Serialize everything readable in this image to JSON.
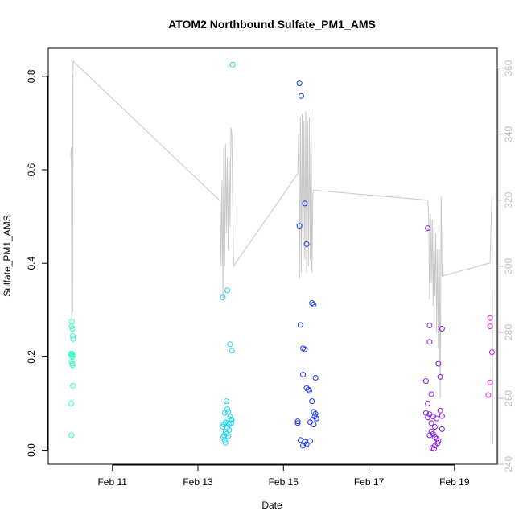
{
  "chart_data": {
    "type": "scatter",
    "title": "ATOM2 Northbound Sulfate_PM1_AMS",
    "xlabel": "Date",
    "ylabel": "Sulfate_PM1_AMS",
    "x_is_date": true,
    "xlim": [
      "2017-02-09T12:00",
      "2017-02-20T00:00"
    ],
    "x_ticks": [
      {
        "x": "2017-02-11T00:00",
        "label": "Feb 11"
      },
      {
        "x": "2017-02-13T00:00",
        "label": "Feb 13"
      },
      {
        "x": "2017-02-15T00:00",
        "label": "Feb 15"
      },
      {
        "x": "2017-02-17T00:00",
        "label": "Feb 17"
      },
      {
        "x": "2017-02-19T00:00",
        "label": "Feb 19"
      }
    ],
    "ylim": [
      -0.03,
      0.86
    ],
    "y_ticks": [
      0.0,
      0.2,
      0.4,
      0.6,
      0.8
    ],
    "y_tick_labels": [
      "0.0",
      "0.2",
      "0.4",
      "0.6",
      "0.8"
    ],
    "y2lim": [
      240,
      366
    ],
    "y2_ticks": [
      240,
      260,
      280,
      300,
      320,
      340,
      360
    ],
    "y2_color": "#bfbfbf",
    "grid": false,
    "colors": {
      "series1": "#2effc6",
      "series2": "#1ad6f0",
      "series3": "#1a36f5",
      "series4": "#8a1ae8",
      "series5": "#e01ae8",
      "line": "#c8c8c8"
    },
    "series": [
      {
        "color": "#2effc6",
        "points": [
          [
            "2017-02-10T01:00",
            0.265
          ],
          [
            "2017-02-10T01:15",
            0.275
          ],
          [
            "2017-02-10T01:30",
            0.26
          ],
          [
            "2017-02-10T01:45",
            0.245
          ],
          [
            "2017-02-10T02:00",
            0.238
          ],
          [
            "2017-02-10T00:45",
            0.205
          ],
          [
            "2017-02-10T01:00",
            0.207
          ],
          [
            "2017-02-10T01:15",
            0.202
          ],
          [
            "2017-02-10T01:30",
            0.205
          ],
          [
            "2017-02-10T01:45",
            0.2
          ],
          [
            "2017-02-10T01:05",
            0.19
          ],
          [
            "2017-02-10T01:20",
            0.185
          ],
          [
            "2017-02-10T01:35",
            0.182
          ],
          [
            "2017-02-10T01:50",
            0.138
          ],
          [
            "2017-02-10T00:50",
            0.1
          ],
          [
            "2017-02-10T01:00",
            0.032
          ]
        ]
      },
      {
        "color": "#1ad6f0",
        "points": [
          [
            "2017-02-13T14:00",
            0.327
          ],
          [
            "2017-02-13T16:30",
            0.342
          ],
          [
            "2017-02-13T18:00",
            0.227
          ],
          [
            "2017-02-13T19:00",
            0.213
          ],
          [
            "2017-02-13T19:30",
            0.825
          ],
          [
            "2017-02-13T16:00",
            0.105
          ],
          [
            "2017-02-13T16:30",
            0.088
          ],
          [
            "2017-02-13T15:00",
            0.08
          ],
          [
            "2017-02-13T17:00",
            0.082
          ],
          [
            "2017-02-13T18:00",
            0.072
          ],
          [
            "2017-02-13T18:30",
            0.066
          ],
          [
            "2017-02-13T19:00",
            0.065
          ],
          [
            "2017-02-13T15:30",
            0.06
          ],
          [
            "2017-02-13T14:30",
            0.055
          ],
          [
            "2017-02-13T16:00",
            0.058
          ],
          [
            "2017-02-13T17:30",
            0.055
          ],
          [
            "2017-02-13T18:45",
            0.058
          ],
          [
            "2017-02-13T14:00",
            0.05
          ],
          [
            "2017-02-13T16:30",
            0.048
          ],
          [
            "2017-02-13T17:30",
            0.043
          ],
          [
            "2017-02-13T15:30",
            0.038
          ],
          [
            "2017-02-13T16:00",
            0.035
          ],
          [
            "2017-02-13T14:45",
            0.032
          ],
          [
            "2017-02-13T14:15",
            0.028
          ],
          [
            "2017-02-13T17:00",
            0.03
          ],
          [
            "2017-02-13T15:00",
            0.022
          ],
          [
            "2017-02-13T15:30",
            0.016
          ]
        ]
      },
      {
        "color": "#1a36f5",
        "points": [
          [
            "2017-02-15T09:00",
            0.785
          ],
          [
            "2017-02-15T10:00",
            0.758
          ],
          [
            "2017-02-15T12:00",
            0.528
          ],
          [
            "2017-02-15T09:00",
            0.48
          ],
          [
            "2017-02-15T13:00",
            0.441
          ],
          [
            "2017-02-15T16:00",
            0.315
          ],
          [
            "2017-02-15T17:00",
            0.312
          ],
          [
            "2017-02-15T09:30",
            0.268
          ],
          [
            "2017-02-15T11:00",
            0.218
          ],
          [
            "2017-02-15T12:00",
            0.216
          ],
          [
            "2017-02-15T11:00",
            0.162
          ],
          [
            "2017-02-15T18:00",
            0.155
          ],
          [
            "2017-02-15T13:00",
            0.133
          ],
          [
            "2017-02-15T14:00",
            0.13
          ],
          [
            "2017-02-15T14:30",
            0.127
          ],
          [
            "2017-02-15T16:00",
            0.105
          ],
          [
            "2017-02-15T17:00",
            0.082
          ],
          [
            "2017-02-15T18:00",
            0.078
          ],
          [
            "2017-02-15T17:30",
            0.072
          ],
          [
            "2017-02-15T18:30",
            0.068
          ],
          [
            "2017-02-15T16:30",
            0.065
          ],
          [
            "2017-02-15T08:00",
            0.062
          ],
          [
            "2017-02-15T15:00",
            0.06
          ],
          [
            "2017-02-15T08:00",
            0.058
          ],
          [
            "2017-02-15T17:00",
            0.055
          ],
          [
            "2017-02-15T09:30",
            0.022
          ],
          [
            "2017-02-15T15:00",
            0.02
          ],
          [
            "2017-02-15T12:00",
            0.018
          ],
          [
            "2017-02-15T13:00",
            0.013
          ],
          [
            "2017-02-15T11:00",
            0.01
          ]
        ]
      },
      {
        "color": "#8a1ae8",
        "points": [
          [
            "2017-02-18T09:00",
            0.475
          ],
          [
            "2017-02-18T10:00",
            0.267
          ],
          [
            "2017-02-18T17:00",
            0.26
          ],
          [
            "2017-02-18T10:00",
            0.232
          ],
          [
            "2017-02-18T15:00",
            0.185
          ],
          [
            "2017-02-18T16:00",
            0.157
          ],
          [
            "2017-02-18T08:00",
            0.148
          ],
          [
            "2017-02-18T11:00",
            0.12
          ],
          [
            "2017-02-18T09:00",
            0.1
          ],
          [
            "2017-02-18T16:00",
            0.085
          ],
          [
            "2017-02-18T08:00",
            0.08
          ],
          [
            "2017-02-18T10:00",
            0.077
          ],
          [
            "2017-02-18T17:00",
            0.073
          ],
          [
            "2017-02-18T12:00",
            0.072
          ],
          [
            "2017-02-18T09:00",
            0.07
          ],
          [
            "2017-02-18T14:00",
            0.068
          ],
          [
            "2017-02-18T11:00",
            0.058
          ],
          [
            "2017-02-18T13:00",
            0.05
          ],
          [
            "2017-02-18T17:00",
            0.045
          ],
          [
            "2017-02-18T11:00",
            0.04
          ],
          [
            "2017-02-18T12:00",
            0.035
          ],
          [
            "2017-02-18T10:00",
            0.032
          ],
          [
            "2017-02-18T13:00",
            0.028
          ],
          [
            "2017-02-18T14:00",
            0.025
          ],
          [
            "2017-02-18T15:00",
            0.02
          ],
          [
            "2017-02-18T14:30",
            0.015
          ],
          [
            "2017-02-18T13:00",
            0.01
          ],
          [
            "2017-02-18T11:30",
            0.005
          ],
          [
            "2017-02-18T12:30",
            0.003
          ]
        ]
      },
      {
        "color": "#e01ae8",
        "points": [
          [
            "2017-02-19T20:00",
            0.283
          ],
          [
            "2017-02-19T20:00",
            0.265
          ],
          [
            "2017-02-19T21:00",
            0.21
          ],
          [
            "2017-02-19T20:00",
            0.145
          ],
          [
            "2017-02-19T19:00",
            0.118
          ]
        ]
      }
    ],
    "line_series": {
      "axis": "right",
      "color": "#c8c8c8",
      "points": [
        [
          "2017-02-10T00:40",
          333
        ],
        [
          "2017-02-10T00:55",
          336
        ],
        [
          "2017-02-10T01:10",
          278
        ],
        [
          "2017-02-10T01:25",
          358
        ],
        [
          "2017-02-10T01:40",
          286
        ],
        [
          "2017-02-10T01:55",
          362
        ],
        [
          "2017-02-10T02:05",
          362
        ],
        [
          "2017-02-13T12:00",
          320
        ],
        [
          "2017-02-13T12:30",
          320
        ],
        [
          "2017-02-13T13:00",
          300
        ],
        [
          "2017-02-13T13:30",
          326
        ],
        [
          "2017-02-13T14:00",
          290
        ],
        [
          "2017-02-13T14:30",
          336
        ],
        [
          "2017-02-13T15:00",
          300
        ],
        [
          "2017-02-13T15:30",
          337
        ],
        [
          "2017-02-13T16:00",
          310
        ],
        [
          "2017-02-13T16:30",
          333
        ],
        [
          "2017-02-13T17:00",
          305
        ],
        [
          "2017-02-13T17:30",
          333
        ],
        [
          "2017-02-13T18:00",
          312
        ],
        [
          "2017-02-13T18:30",
          342
        ],
        [
          "2017-02-13T19:00",
          340
        ],
        [
          "2017-02-13T20:00",
          300
        ],
        [
          "2017-02-15T08:00",
          328
        ],
        [
          "2017-02-15T08:30",
          340
        ],
        [
          "2017-02-15T09:00",
          296
        ],
        [
          "2017-02-15T09:30",
          345
        ],
        [
          "2017-02-15T10:00",
          298
        ],
        [
          "2017-02-15T10:30",
          346
        ],
        [
          "2017-02-15T11:00",
          300
        ],
        [
          "2017-02-15T11:30",
          344
        ],
        [
          "2017-02-15T12:00",
          302
        ],
        [
          "2017-02-15T12:30",
          347
        ],
        [
          "2017-02-15T13:00",
          298
        ],
        [
          "2017-02-15T13:30",
          344
        ],
        [
          "2017-02-15T14:00",
          300
        ],
        [
          "2017-02-15T14:30",
          345
        ],
        [
          "2017-02-15T15:00",
          302
        ],
        [
          "2017-02-15T15:30",
          347
        ],
        [
          "2017-02-15T16:00",
          298
        ],
        [
          "2017-02-15T16:30",
          322
        ],
        [
          "2017-02-15T17:00",
          323
        ],
        [
          "2017-02-18T09:00",
          320
        ],
        [
          "2017-02-18T09:30",
          315
        ],
        [
          "2017-02-18T10:00",
          290
        ],
        [
          "2017-02-18T10:30",
          316
        ],
        [
          "2017-02-18T11:00",
          295
        ],
        [
          "2017-02-18T11:30",
          314
        ],
        [
          "2017-02-18T12:00",
          288
        ],
        [
          "2017-02-18T12:30",
          312
        ],
        [
          "2017-02-18T13:00",
          291
        ],
        [
          "2017-02-18T13:30",
          310
        ],
        [
          "2017-02-18T14:00",
          280
        ],
        [
          "2017-02-18T14:30",
          305
        ],
        [
          "2017-02-18T15:00",
          275
        ],
        [
          "2017-02-18T15:30",
          305
        ],
        [
          "2017-02-18T16:00",
          260
        ],
        [
          "2017-02-18T16:30",
          321
        ],
        [
          "2017-02-18T17:00",
          297
        ],
        [
          "2017-02-19T20:00",
          301
        ],
        [
          "2017-02-19T21:00",
          322
        ],
        [
          "2017-02-19T21:30",
          246
        ]
      ]
    }
  }
}
